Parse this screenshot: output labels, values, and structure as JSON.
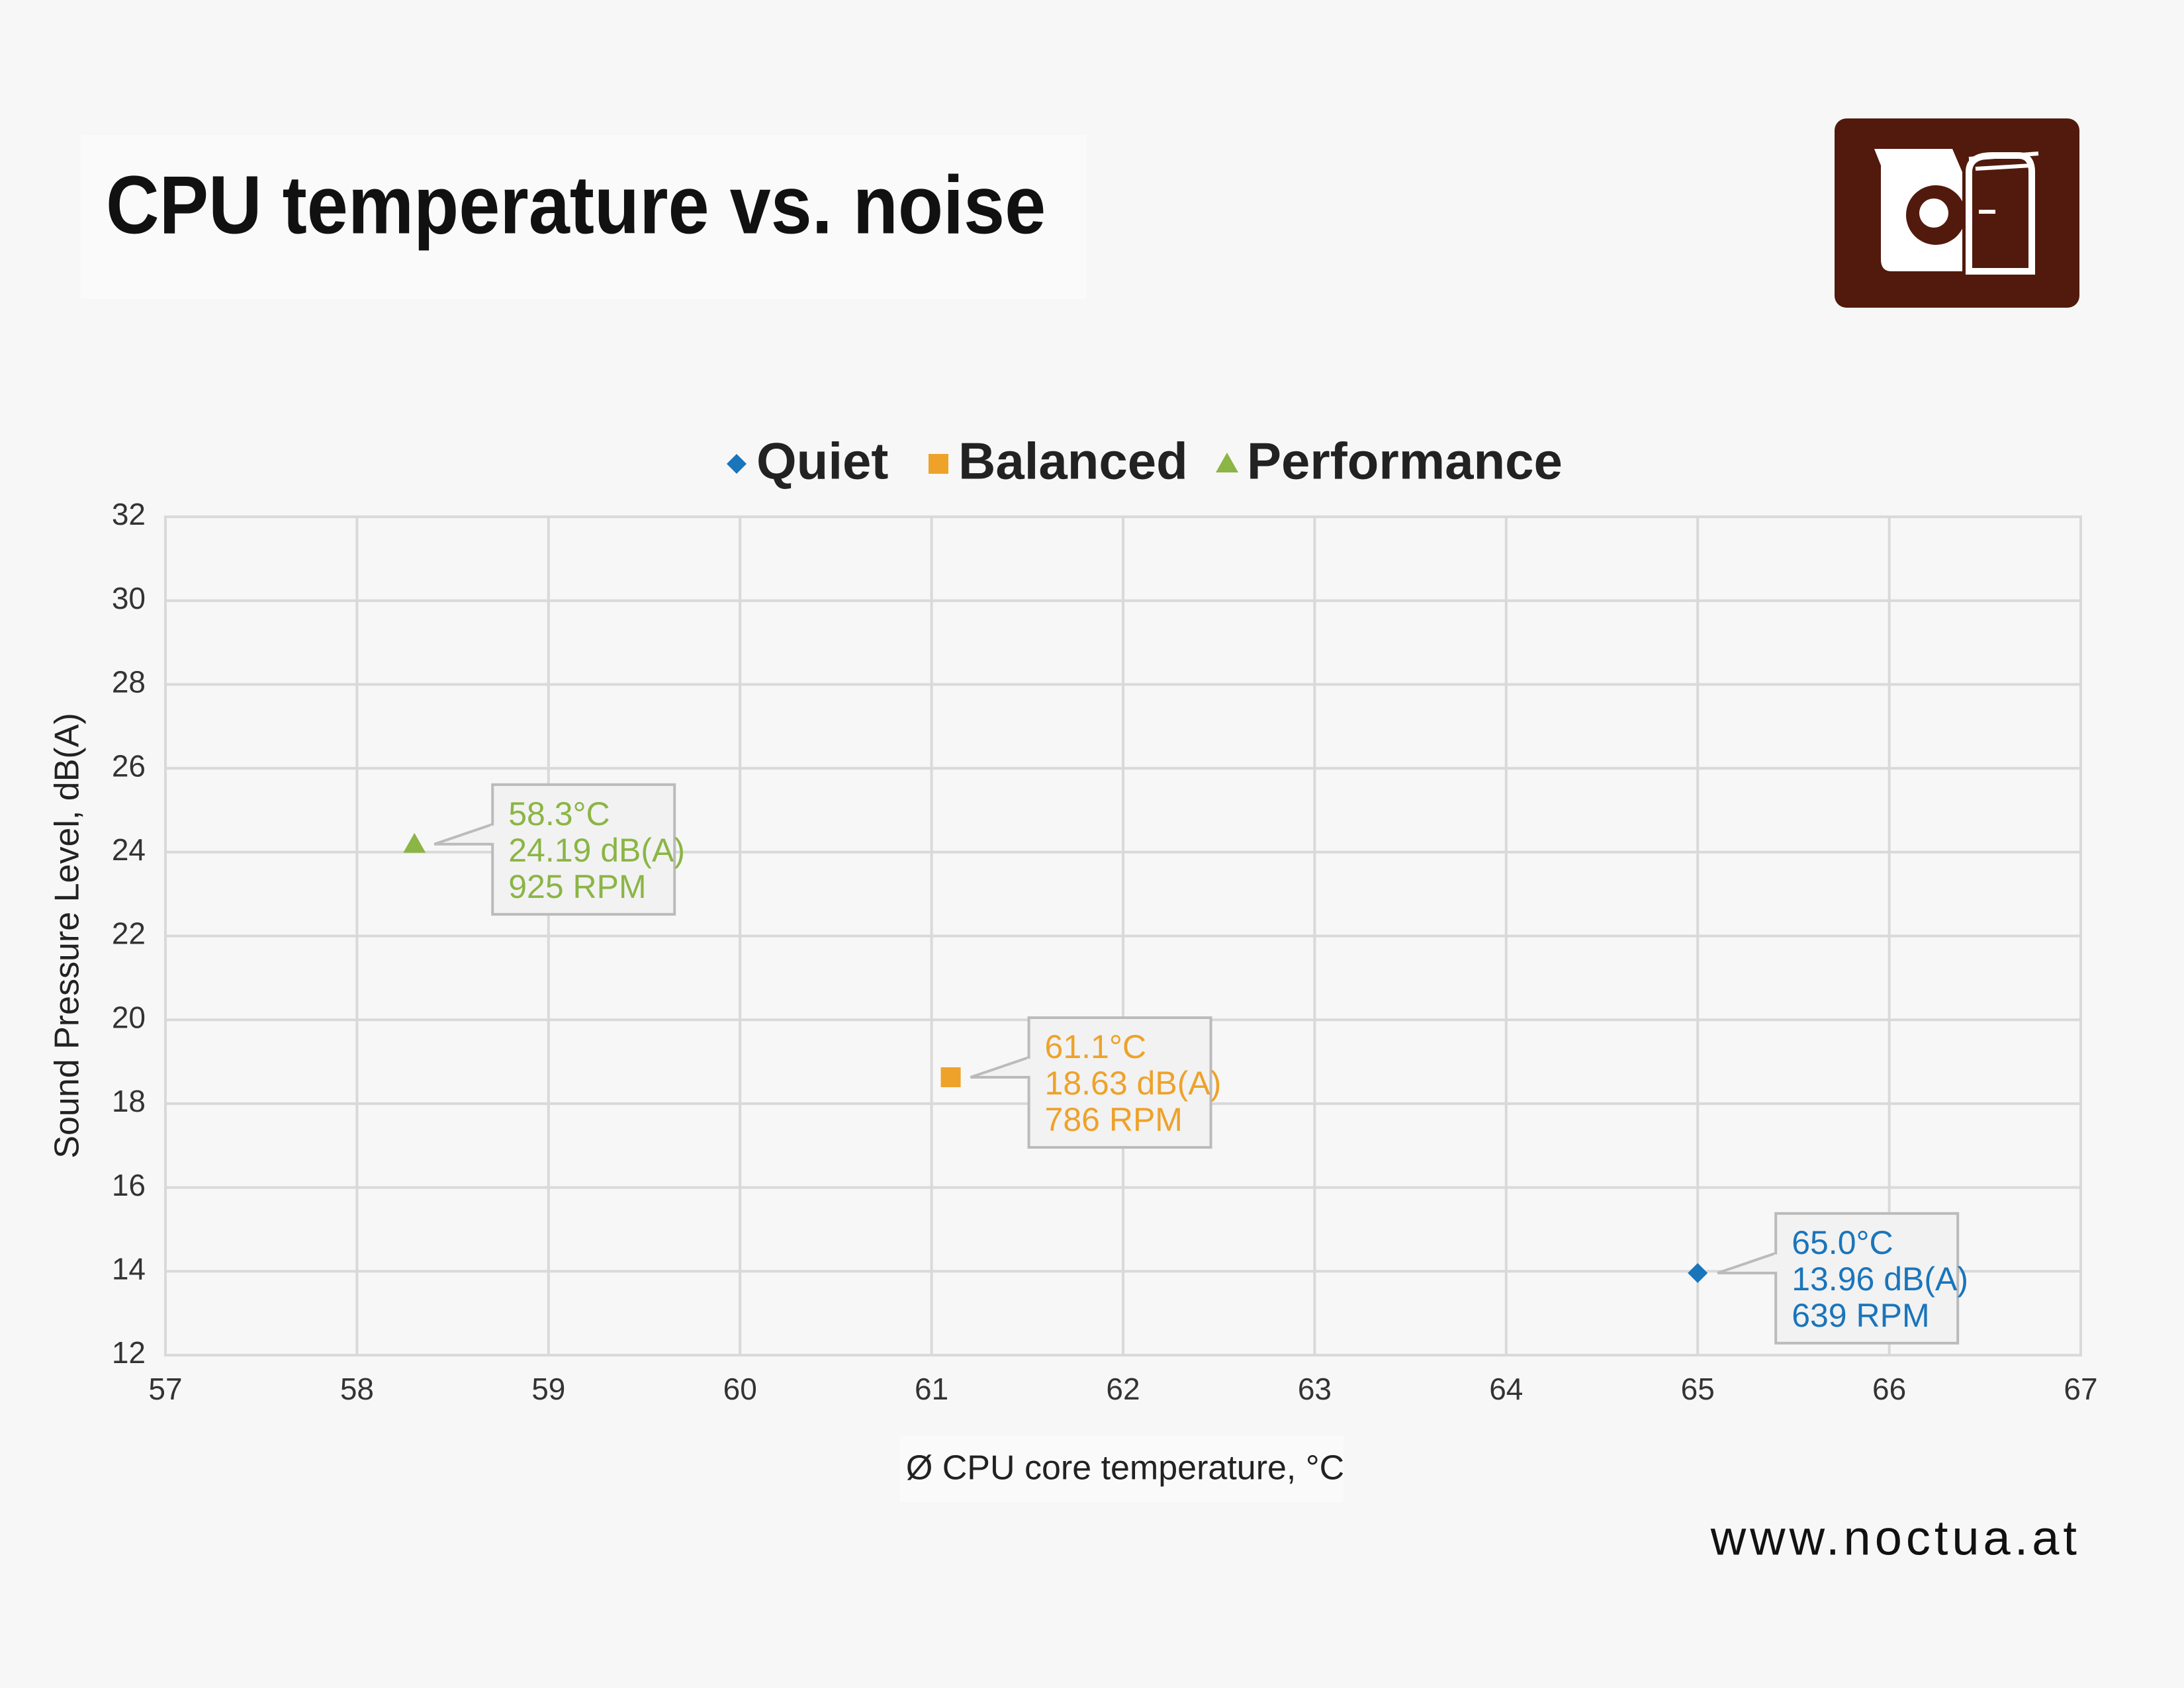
{
  "chart_data": {
    "type": "scatter",
    "title": "CPU temperature vs. noise",
    "x_label": "Ø CPU core temperature, °C",
    "y_label": "Sound Pressure Level, dB(A)",
    "footer": "www.noctua.at",
    "xlim": [
      57,
      67
    ],
    "xticks": [
      57,
      58,
      59,
      60,
      61,
      62,
      63,
      64,
      65,
      66,
      67
    ],
    "ylim": [
      12,
      32
    ],
    "yticks": [
      12,
      14,
      16,
      18,
      20,
      22,
      24,
      26,
      28,
      30,
      32
    ],
    "grid": true,
    "legend": "top",
    "series": [
      {
        "name": "Quiet",
        "color": "#1a75bb",
        "marker": "diamond",
        "x": [
          65.0
        ],
        "values": [
          13.96
        ],
        "value_labels": [
          [
            "65.0°C",
            "13.96 dB(A)",
            "639 RPM"
          ]
        ]
      },
      {
        "name": "Balanced",
        "color": "#eea22a",
        "marker": "square",
        "x": [
          61.1
        ],
        "values": [
          18.63
        ],
        "value_labels": [
          [
            "61.1°C",
            "18.63 dB(A)",
            "786 RPM"
          ]
        ]
      },
      {
        "name": "Performance",
        "color": "#8bb545",
        "marker": "triangle",
        "x": [
          58.3
        ],
        "values": [
          24.19
        ],
        "value_labels": [
          [
            "58.3°C",
            "24.19 dB(A)",
            "925 RPM"
          ]
        ]
      }
    ]
  }
}
